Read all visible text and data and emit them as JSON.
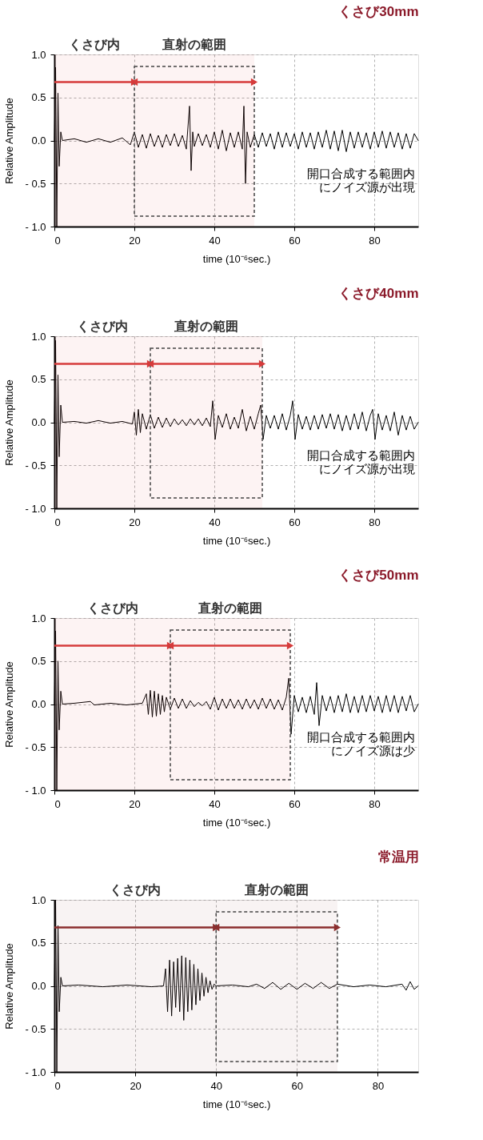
{
  "chart_data": [
    {
      "type": "line",
      "title": "くさび30mm",
      "xlabel": "time (10⁻⁶sec.)",
      "ylabel": "Relative Amplitude",
      "xlim": [
        0,
        91
      ],
      "ylim": [
        -1,
        1
      ],
      "xticks": [
        0,
        20,
        40,
        60,
        80
      ],
      "yticks": [
        {
          "value": -1,
          "label": "- 1.0"
        },
        {
          "value": -0.5,
          "label": "- 0.5"
        },
        {
          "value": 0,
          "label": "0.0"
        },
        {
          "value": 0.5,
          "label": "0.5"
        },
        {
          "value": 1,
          "label": "1.0"
        }
      ],
      "grid": true,
      "x": [
        0,
        0.3,
        0.6,
        0.9,
        1.2,
        1.6,
        2,
        5,
        8,
        11,
        14,
        17,
        19,
        20,
        21,
        22,
        23,
        24,
        25,
        26,
        27,
        28,
        29,
        30,
        31,
        32,
        33,
        33.8,
        34.2,
        34.6,
        35,
        36,
        37,
        38,
        39,
        40,
        41,
        42,
        43,
        44,
        45,
        46,
        47,
        47.4,
        47.8,
        48.2,
        49,
        50,
        51,
        52,
        53,
        54,
        55,
        56,
        57,
        58,
        59,
        60,
        61,
        62,
        63,
        64,
        65,
        66,
        67,
        68,
        69,
        70,
        71,
        72,
        73,
        74,
        75,
        76,
        77,
        78,
        79,
        80,
        81,
        82,
        83,
        84,
        85,
        86,
        87,
        88,
        89,
        90,
        91
      ],
      "series": [
        {
          "color": "#000000",
          "values": [
            0,
            0.85,
            -1.0,
            0.55,
            -0.3,
            0.1,
            0,
            0.02,
            -0.02,
            0.02,
            -0.02,
            0.03,
            -0.05,
            0.1,
            -0.08,
            0.07,
            -0.09,
            0.08,
            -0.07,
            0.06,
            -0.08,
            0.07,
            -0.06,
            0.08,
            -0.07,
            0.06,
            -0.1,
            0.4,
            -0.35,
            0.1,
            -0.07,
            0.08,
            -0.06,
            0.07,
            -0.08,
            0.1,
            -0.1,
            0.12,
            -0.12,
            0.09,
            -0.08,
            0.1,
            -0.1,
            0.4,
            -0.5,
            0.1,
            -0.08,
            0.07,
            -0.08,
            0.09,
            -0.07,
            0.08,
            -0.1,
            0.1,
            -0.08,
            0.09,
            -0.07,
            0.08,
            -0.1,
            0.1,
            -0.08,
            0.09,
            -0.1,
            0.1,
            -0.08,
            0.12,
            -0.1,
            0.11,
            -0.12,
            0.12,
            -0.13,
            0.1,
            -0.09,
            0.1,
            -0.08,
            0.09,
            -0.1,
            0.1,
            -0.08,
            0.11,
            -0.09,
            0.1,
            -0.08,
            0.09,
            -0.1,
            0.08,
            -0.09,
            0.08,
            0
          ]
        }
      ],
      "bands": [
        {
          "axis": "x",
          "from": 0,
          "to": 20,
          "label": "くさび内",
          "color": "#d63b3b"
        },
        {
          "axis": "x",
          "from": 20,
          "to": 50,
          "label": "直射の範囲",
          "color": "#d63b3b"
        }
      ],
      "annotations": [
        "開口合成する範囲内にノイズ源が出現"
      ]
    },
    {
      "type": "line",
      "title": "くさび40mm",
      "xlabel": "time (10⁻⁶sec.)",
      "ylabel": "Relative Amplitude",
      "xlim": [
        0,
        91
      ],
      "ylim": [
        -1,
        1
      ],
      "xticks": [
        0,
        20,
        40,
        60,
        80
      ],
      "yticks": [
        {
          "value": -1,
          "label": "- 1.0"
        },
        {
          "value": -0.5,
          "label": "- 0.5"
        },
        {
          "value": 0,
          "label": "0.0"
        },
        {
          "value": 0.5,
          "label": "0.5"
        },
        {
          "value": 1,
          "label": "1.0"
        }
      ],
      "grid": true,
      "x": [
        0,
        0.3,
        0.6,
        0.9,
        1.2,
        1.6,
        2,
        5,
        8,
        11,
        14,
        17,
        19.5,
        20,
        20.5,
        21,
        21.5,
        22,
        23,
        24,
        25,
        26,
        27,
        28,
        29,
        30,
        31,
        32,
        33,
        34,
        35,
        36,
        37,
        38,
        39,
        39.6,
        40.2,
        41,
        42,
        43,
        44,
        45,
        46,
        47,
        48,
        49,
        50,
        51,
        51.6,
        52.2,
        53,
        54,
        55,
        56,
        57,
        58,
        59,
        59.6,
        60.2,
        61,
        62,
        63,
        64,
        65,
        66,
        67,
        68,
        69,
        70,
        71,
        72,
        73,
        74,
        75,
        76,
        77,
        78,
        79,
        79.6,
        80.2,
        81,
        82,
        83,
        84,
        85,
        86,
        87,
        88,
        89,
        90,
        91
      ],
      "series": [
        {
          "color": "#000000",
          "values": [
            0,
            0.95,
            -1.0,
            0.55,
            -0.4,
            0.2,
            0,
            0.01,
            -0.01,
            0.02,
            -0.01,
            0.01,
            -0.02,
            0.12,
            -0.15,
            0.15,
            -0.12,
            0.1,
            -0.08,
            0.09,
            -0.07,
            0.06,
            -0.06,
            0.05,
            -0.05,
            0.04,
            -0.03,
            0.03,
            -0.04,
            0.04,
            -0.03,
            0.04,
            -0.04,
            0.05,
            -0.05,
            0.25,
            -0.2,
            0.08,
            -0.06,
            0.1,
            -0.08,
            0.06,
            -0.07,
            0.15,
            -0.1,
            0.07,
            -0.08,
            0.1,
            0.2,
            -0.2,
            0.08,
            -0.07,
            0.08,
            -0.08,
            0.1,
            -0.09,
            0.08,
            0.25,
            -0.2,
            0.09,
            -0.08,
            0.07,
            -0.09,
            0.08,
            -0.08,
            0.09,
            -0.07,
            0.1,
            -0.08,
            0.09,
            -0.1,
            0.08,
            -0.09,
            0.1,
            -0.08,
            0.12,
            -0.1,
            0.08,
            0.15,
            -0.2,
            0.1,
            -0.09,
            0.08,
            -0.1,
            0.12,
            -0.15,
            0.08,
            -0.09,
            0.07,
            -0.08,
            0
          ]
        }
      ],
      "bands": [
        {
          "axis": "x",
          "from": 0,
          "to": 24,
          "label": "くさび内",
          "color": "#d63b3b"
        },
        {
          "axis": "x",
          "from": 24,
          "to": 52,
          "label": "直射の範囲",
          "color": "#d63b3b"
        }
      ],
      "annotations": [
        "開口合成する範囲内にノイズ源が出現"
      ]
    },
    {
      "type": "line",
      "title": "くさび50mm",
      "xlabel": "time (10⁻⁶sec.)",
      "ylabel": "Relative Amplitude",
      "xlim": [
        0,
        91
      ],
      "ylim": [
        -1,
        1
      ],
      "xticks": [
        0,
        20,
        40,
        60,
        80
      ],
      "yticks": [
        {
          "value": -1,
          "label": "- 1.0"
        },
        {
          "value": -0.5,
          "label": "- 0.5"
        },
        {
          "value": 0,
          "label": "0.0"
        },
        {
          "value": 0.5,
          "label": "0.5"
        },
        {
          "value": 1,
          "label": "1.0"
        }
      ],
      "grid": true,
      "x": [
        0,
        0.3,
        0.6,
        0.9,
        1.2,
        1.6,
        2,
        5,
        9,
        10,
        14,
        18,
        22,
        23,
        23.5,
        24,
        24.5,
        25,
        25.5,
        26,
        26.5,
        27,
        27.5,
        28,
        29,
        30,
        31,
        32,
        33,
        34,
        35,
        36,
        37,
        38,
        39,
        40,
        41,
        42,
        43,
        44,
        45,
        46,
        47,
        48,
        49,
        50,
        51,
        52,
        53,
        54,
        55,
        56,
        57,
        58,
        58.6,
        59.2,
        60,
        61,
        62,
        63,
        64,
        65,
        65.6,
        66.2,
        67,
        68,
        69,
        70,
        71,
        72,
        73,
        74,
        75,
        76,
        77,
        78,
        79,
        80,
        81,
        82,
        83,
        84,
        85,
        86,
        87,
        88,
        89,
        90,
        91
      ],
      "series": [
        {
          "color": "#000000",
          "values": [
            0,
            0.85,
            -1.0,
            0.5,
            -0.3,
            0.15,
            0,
            0.01,
            0.03,
            -0.01,
            0.01,
            -0.01,
            0.01,
            0.12,
            -0.12,
            0.16,
            -0.15,
            0.15,
            -0.14,
            0.12,
            -0.12,
            0.1,
            -0.09,
            0.08,
            -0.06,
            0.07,
            -0.05,
            0.06,
            -0.05,
            0.04,
            -0.03,
            0.02,
            -0.02,
            0.03,
            -0.06,
            0.08,
            -0.07,
            0.06,
            -0.05,
            0.06,
            -0.05,
            0.05,
            -0.06,
            0.06,
            -0.05,
            0.05,
            -0.06,
            0.07,
            -0.05,
            0.06,
            -0.06,
            0.05,
            -0.07,
            0.08,
            0.3,
            -0.35,
            0.1,
            -0.09,
            0.08,
            -0.1,
            0.09,
            -0.12,
            0.25,
            -0.25,
            0.1,
            -0.08,
            0.09,
            -0.1,
            0.1,
            -0.09,
            0.12,
            -0.1,
            0.09,
            -0.1,
            0.1,
            -0.09,
            0.1,
            -0.08,
            0.09,
            -0.1,
            0.1,
            -0.09,
            0.1,
            -0.1,
            0.09,
            -0.08,
            0.1,
            -0.09,
            0
          ]
        }
      ],
      "bands": [
        {
          "axis": "x",
          "from": 0,
          "to": 29,
          "label": "くさび内",
          "color": "#d63b3b"
        },
        {
          "axis": "x",
          "from": 29,
          "to": 59,
          "label": "直射の範囲",
          "color": "#d63b3b"
        }
      ],
      "annotations": [
        "開口合成する範囲内にノイズ源は少"
      ]
    },
    {
      "type": "line",
      "title": "常温用",
      "xlabel": "time (10⁻⁶sec.)",
      "ylabel": "Relative Amplitude",
      "xlim": [
        0,
        90
      ],
      "ylim": [
        -1,
        1
      ],
      "xticks": [
        0,
        20,
        40,
        60,
        80
      ],
      "yticks": [
        {
          "value": -1,
          "label": "- 1.0"
        },
        {
          "value": -0.5,
          "label": "- 0.5"
        },
        {
          "value": 0,
          "label": "0.0"
        },
        {
          "value": 0.5,
          "label": "0.5"
        },
        {
          "value": 1,
          "label": "1.0"
        }
      ],
      "grid": true,
      "x": [
        0,
        0.3,
        0.6,
        0.9,
        1.2,
        1.6,
        2,
        6,
        12,
        18,
        24,
        27,
        27.5,
        28,
        28.5,
        29,
        29.5,
        30,
        30.5,
        31,
        31.5,
        32,
        32.5,
        33,
        33.5,
        34,
        34.5,
        35,
        35.5,
        36,
        36.5,
        37,
        37.5,
        38,
        38.5,
        39,
        39.5,
        40,
        44,
        48,
        50,
        52,
        54,
        56,
        58,
        60,
        62,
        64,
        66,
        68,
        70,
        74,
        78,
        82,
        86,
        87,
        88,
        89,
        90
      ],
      "series": [
        {
          "color": "#000000",
          "values": [
            0,
            1.0,
            -1.0,
            0.7,
            -0.3,
            0.1,
            0,
            0.01,
            -0.01,
            0.01,
            -0.01,
            0,
            0.2,
            -0.3,
            0.3,
            -0.35,
            0.28,
            -0.25,
            0.32,
            -0.3,
            0.35,
            -0.4,
            0.33,
            -0.3,
            0.3,
            -0.28,
            0.25,
            -0.22,
            0.2,
            -0.17,
            0.15,
            -0.12,
            0.1,
            -0.08,
            0.06,
            -0.04,
            0.02,
            0,
            0.01,
            -0.01,
            0.02,
            -0.03,
            0.04,
            -0.04,
            0.03,
            -0.04,
            0.03,
            -0.03,
            0.04,
            -0.03,
            0.02,
            -0.01,
            0.01,
            -0.01,
            0.02,
            -0.05,
            0.05,
            -0.04,
            0
          ]
        }
      ],
      "bands": [
        {
          "axis": "x",
          "from": 0,
          "to": 40,
          "label": "くさび内",
          "color": "#8b2e2e"
        },
        {
          "axis": "x",
          "from": 40,
          "to": 70,
          "label": "直射の範囲",
          "color": "#8b2e2e"
        }
      ]
    }
  ]
}
